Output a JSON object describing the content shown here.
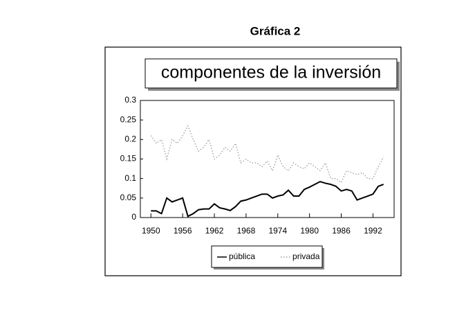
{
  "page_title": "Gráfica 2",
  "chart_data": {
    "type": "line",
    "title": "componentes de la inversión",
    "x": [
      1950,
      1951,
      1952,
      1953,
      1954,
      1955,
      1956,
      1957,
      1958,
      1959,
      1960,
      1961,
      1962,
      1963,
      1964,
      1965,
      1966,
      1967,
      1968,
      1969,
      1970,
      1971,
      1972,
      1973,
      1974,
      1975,
      1976,
      1977,
      1978,
      1979,
      1980,
      1981,
      1982,
      1983,
      1984,
      1985,
      1986,
      1987,
      1988,
      1989,
      1990,
      1991,
      1992,
      1993,
      1994
    ],
    "series": [
      {
        "name": "pública",
        "color": "#000000",
        "style": "solid",
        "values": [
          0.017,
          0.017,
          0.01,
          0.05,
          0.04,
          0.045,
          0.05,
          0.003,
          0.01,
          0.02,
          0.022,
          0.022,
          0.035,
          0.025,
          0.022,
          0.018,
          0.028,
          0.042,
          0.045,
          0.05,
          0.055,
          0.06,
          0.06,
          0.05,
          0.055,
          0.058,
          0.07,
          0.055,
          0.055,
          0.072,
          0.078,
          0.085,
          0.092,
          0.088,
          0.085,
          0.08,
          0.068,
          0.072,
          0.068,
          0.045,
          0.05,
          0.055,
          0.06,
          0.08,
          0.085
        ]
      },
      {
        "name": "privada",
        "color": "#9a9a9a",
        "style": "dotted",
        "values": [
          0.21,
          0.19,
          0.2,
          0.15,
          0.2,
          0.19,
          0.21,
          0.235,
          0.2,
          0.17,
          0.18,
          0.2,
          0.15,
          0.16,
          0.18,
          0.17,
          0.19,
          0.14,
          0.15,
          0.14,
          0.14,
          0.13,
          0.145,
          0.12,
          0.16,
          0.13,
          0.12,
          0.14,
          0.13,
          0.125,
          0.14,
          0.13,
          0.12,
          0.14,
          0.1,
          0.1,
          0.09,
          0.12,
          0.115,
          0.11,
          0.115,
          0.1,
          0.1,
          0.13,
          0.155
        ]
      }
    ],
    "xlim": [
      1948,
      1996
    ],
    "xticks": [
      1950,
      1956,
      1962,
      1968,
      1974,
      1980,
      1986,
      1992
    ],
    "ylim": [
      0,
      0.3
    ],
    "yticks": [
      0,
      0.05,
      0.1,
      0.15,
      0.2,
      0.25,
      0.3
    ],
    "legend": "bottom"
  }
}
